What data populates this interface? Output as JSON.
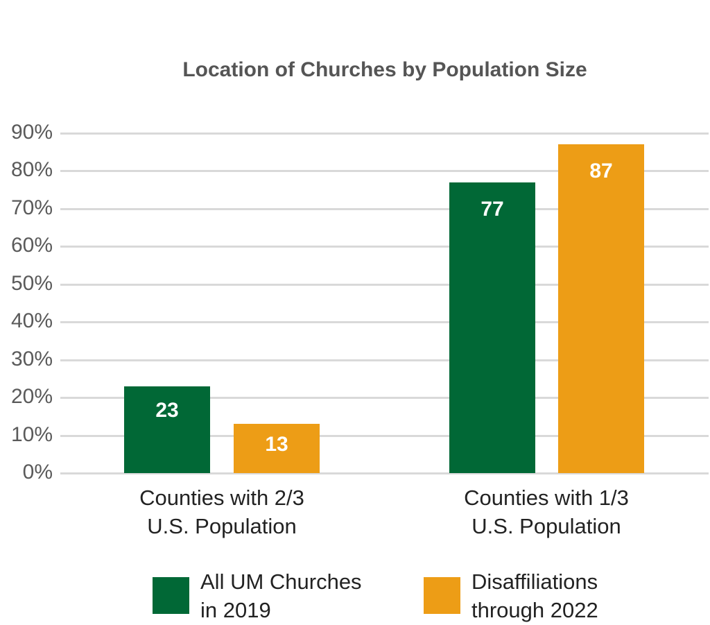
{
  "chart_data": {
    "type": "bar",
    "title": "Location of Churches by Population Size",
    "xlabel": "",
    "ylabel": "",
    "ylim": [
      0,
      90
    ],
    "yticks": [
      "0%",
      "10%",
      "20%",
      "30%",
      "40%",
      "50%",
      "60%",
      "70%",
      "80%",
      "90%"
    ],
    "grid": true,
    "legend_position": "bottom",
    "categories": [
      "Counties with 2/3 U.S. Population",
      "Counties with 1/3 U.S. Population"
    ],
    "category_lines": [
      [
        "Counties with 2/3",
        "U.S. Population"
      ],
      [
        "Counties with 1/3",
        "U.S. Population"
      ]
    ],
    "series": [
      {
        "name": "All UM Churches in 2019",
        "name_lines": [
          "All UM Churches",
          "in 2019"
        ],
        "color": "#016836",
        "values": [
          23,
          77
        ],
        "labels": [
          "23",
          "77"
        ]
      },
      {
        "name": "Disaffiliations through 2022",
        "name_lines": [
          "Disaffiliations",
          "through 2022"
        ],
        "color": "#ed9d16",
        "values": [
          13,
          87
        ],
        "labels": [
          "13",
          "87"
        ]
      }
    ]
  }
}
